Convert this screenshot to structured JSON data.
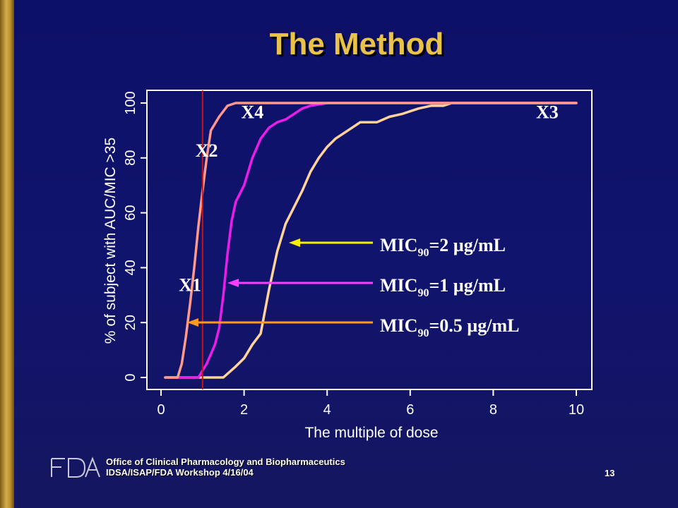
{
  "slide": {
    "title": "The Method",
    "footer_line1": "Office of Clinical Pharmacology and Biopharmaceutics",
    "footer_line2": "IDSA/ISAP/FDA Workshop 4/16/04",
    "page_number": "13",
    "logo_text": "FDA"
  },
  "colors": {
    "background": "#11146c",
    "title": "#e9c24a",
    "mic_2": "#ffd39a",
    "mic_1": "#e81ee8",
    "mic_05": "#ff9a8a",
    "arrow_2": "#f4f000",
    "arrow_1": "#ff3cff",
    "arrow_05": "#ff9a20",
    "reference_line": "#c01818"
  },
  "chart_data": {
    "type": "line",
    "xlabel": "The multiple of dose",
    "ylabel": "% of subject with AUC/MIC >35",
    "xlim": [
      0,
      10
    ],
    "ylim": [
      0,
      100
    ],
    "xticks": [
      0,
      2,
      4,
      6,
      8,
      10
    ],
    "yticks": [
      0,
      20,
      40,
      60,
      80,
      100
    ],
    "grid": false,
    "series": [
      {
        "name": "MIC90=2 µg/mL",
        "label_main": "MIC",
        "label_sub": "90",
        "label_rest": "=2 µg/mL",
        "color": "#ffd39a",
        "x": [
          0.1,
          1.5,
          1.8,
          2.0,
          2.2,
          2.4,
          2.5,
          2.6,
          2.8,
          3.0,
          3.2,
          3.4,
          3.6,
          3.8,
          4.0,
          4.2,
          4.5,
          4.8,
          5.2,
          5.5,
          5.8,
          6.0,
          6.2,
          6.5,
          6.8,
          7.0,
          8.0,
          9.0,
          10.0
        ],
        "y": [
          0,
          0,
          4,
          7,
          12,
          16,
          24,
          32,
          46,
          56,
          62,
          68,
          75,
          80,
          84,
          87,
          90,
          93,
          93,
          95,
          96,
          97,
          98,
          99,
          99,
          100,
          100,
          100,
          100
        ]
      },
      {
        "name": "MIC90=1 µg/mL",
        "label_main": "MIC",
        "label_sub": "90",
        "label_rest": "=1 µg/mL",
        "color": "#e81ee8",
        "x": [
          0.2,
          0.9,
          1.1,
          1.3,
          1.4,
          1.5,
          1.6,
          1.7,
          1.8,
          1.9,
          2.0,
          2.2,
          2.4,
          2.6,
          2.8,
          3.0,
          3.2,
          3.4,
          3.6,
          4.0,
          4.5,
          5.0,
          10.0
        ],
        "y": [
          0,
          0,
          5,
          12,
          18,
          30,
          45,
          57,
          64,
          67,
          70,
          80,
          87,
          91,
          93,
          94,
          96,
          98,
          99,
          100,
          100,
          100,
          100
        ]
      },
      {
        "name": "MIC90=0.5 µg/mL",
        "label_main": "MIC",
        "label_sub": "90",
        "label_rest": "=0.5 µg/mL",
        "color": "#ff9a8a",
        "x": [
          0.1,
          0.4,
          0.5,
          0.6,
          0.7,
          0.8,
          0.9,
          1.0,
          1.1,
          1.2,
          1.4,
          1.6,
          1.8,
          2.0,
          10.0
        ],
        "y": [
          0,
          0,
          5,
          15,
          27,
          40,
          55,
          68,
          80,
          90,
          95,
          99,
          100,
          100,
          100
        ]
      }
    ],
    "reference_line_x": 1.0,
    "annotations": [
      {
        "text": "X1",
        "x": 0.7,
        "y": 34
      },
      {
        "text": "X2",
        "x": 1.1,
        "y": 83
      },
      {
        "text": "X4",
        "x": 2.2,
        "y": 97
      },
      {
        "text": "X3",
        "x": 9.3,
        "y": 97
      }
    ]
  }
}
